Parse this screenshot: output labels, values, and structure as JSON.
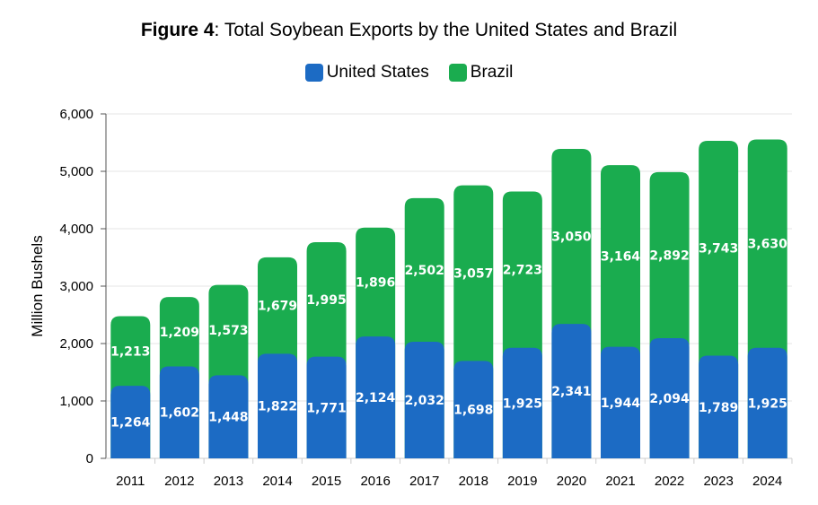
{
  "chart_data": {
    "type": "bar",
    "stacked": true,
    "title_bold": "Figure 4",
    "title_rest": ": Total Soybean Exports by the United States and Brazil",
    "xlabel": "",
    "ylabel": "Million Bushels",
    "ylim": [
      0,
      6000
    ],
    "yticks": [
      0,
      1000,
      2000,
      3000,
      4000,
      5000,
      6000
    ],
    "ytick_labels": [
      "0",
      "1,000",
      "2,000",
      "3,000",
      "4,000",
      "5,000",
      "6,000"
    ],
    "grid": true,
    "legend_position": "top",
    "categories": [
      "2011",
      "2012",
      "2013",
      "2014",
      "2015",
      "2016",
      "2017",
      "2018",
      "2019",
      "2020",
      "2021",
      "2022",
      "2023",
      "2024"
    ],
    "series": [
      {
        "name": "United States",
        "color": "#1c6bc4",
        "values": [
          1264,
          1602,
          1448,
          1822,
          1771,
          2124,
          2032,
          1698,
          1925,
          2341,
          1944,
          2094,
          1789,
          1925
        ]
      },
      {
        "name": "Brazil",
        "color": "#1aac4f",
        "values": [
          1213,
          1209,
          1573,
          1679,
          1995,
          1896,
          2502,
          3057,
          2723,
          3050,
          3164,
          2892,
          3743,
          3630
        ]
      }
    ]
  }
}
